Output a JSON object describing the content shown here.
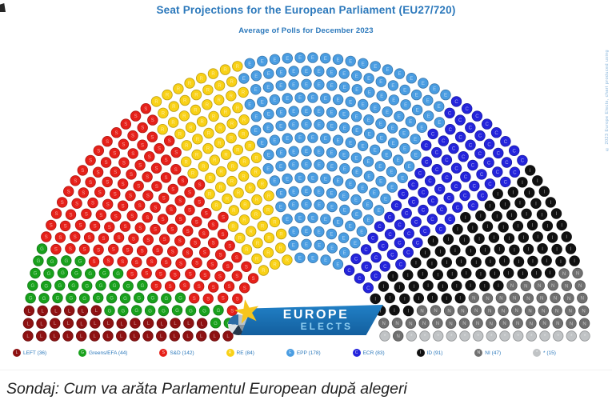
{
  "header": {
    "title": "Seat Projections for the European Parliament (EU27/720)",
    "subtitle": "Average of Polls for December 2023"
  },
  "watermark": "© 2023 Europe Elects, chart produced using",
  "logo": {
    "line1": "EUROPE",
    "line2": "ELECTS",
    "star_icon": "★"
  },
  "caption": "Sondaj: Cum va arăta Parlamentul European după alegeri",
  "chart_data": {
    "type": "hemicycle",
    "title": "Seat Projections for the European Parliament (EU27/720)",
    "subtitle": "Average of Polls for December 2023",
    "total_seats": 720,
    "rows": 16,
    "legend_position": "bottom",
    "series": [
      {
        "name": "LEFT",
        "seats": 36,
        "color": "#8e1112",
        "initial": "L",
        "label": "LEFT (36)"
      },
      {
        "name": "Greens/EFA",
        "seats": 44,
        "color": "#18a11c",
        "initial": "G",
        "label": "Greens/EFA (44)"
      },
      {
        "name": "S&D",
        "seats": 142,
        "color": "#e62019",
        "initial": "S",
        "label": "S&D (142)"
      },
      {
        "name": "RE",
        "seats": 84,
        "color": "#f9d116",
        "initial": "R",
        "label": "RE (84)"
      },
      {
        "name": "EPP",
        "seats": 178,
        "color": "#4a9de2",
        "initial": "E",
        "label": "EPP (178)"
      },
      {
        "name": "ECR",
        "seats": 83,
        "color": "#2424dc",
        "initial": "C",
        "label": "ECR (83)"
      },
      {
        "name": "ID",
        "seats": 91,
        "color": "#111111",
        "initial": "I",
        "label": "ID (91)"
      },
      {
        "name": "NI",
        "seats": 47,
        "color": "#707070",
        "initial": "N",
        "label": "NI (47)"
      },
      {
        "name": "*",
        "seats": 15,
        "color": "#c0c3c5",
        "initial": "*",
        "label": "* (15)"
      }
    ]
  }
}
